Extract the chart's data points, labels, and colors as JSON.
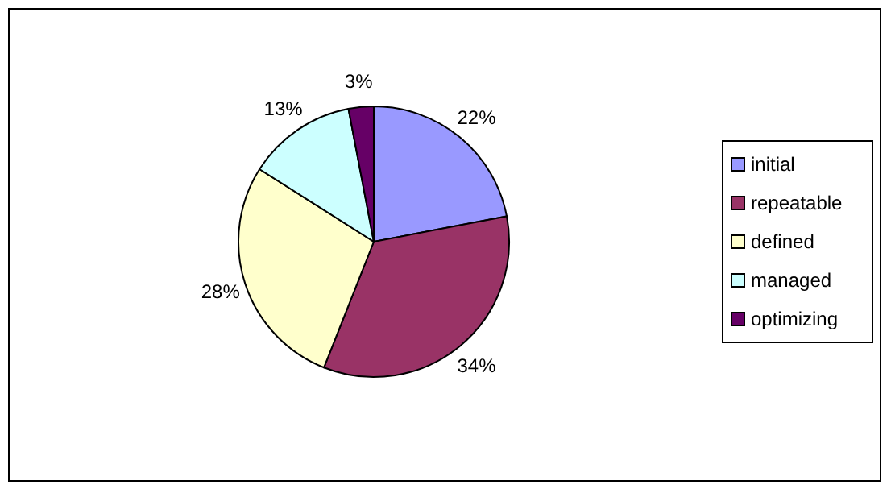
{
  "chart_data": {
    "type": "pie",
    "categories": [
      "initial",
      "repeatable",
      "defined",
      "managed",
      "optimizing"
    ],
    "values": [
      22,
      34,
      28,
      13,
      3
    ],
    "colors": [
      "#9999ff",
      "#993366",
      "#ffffcc",
      "#ccffff",
      "#660066"
    ],
    "value_labels": [
      "22%",
      "34%",
      "28%",
      "13%",
      "3%"
    ],
    "legend": "right"
  }
}
